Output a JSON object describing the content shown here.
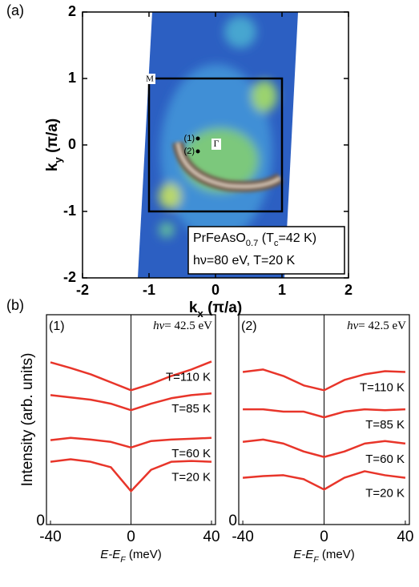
{
  "chart_data": [
    {
      "type": "image",
      "panel_label": "(a)",
      "x_label": [
        {
          "text": "k"
        },
        {
          "text": "x",
          "sub": true
        },
        {
          "text": " (π/a)"
        }
      ],
      "y_label": [
        {
          "text": "k"
        },
        {
          "text": "y",
          "sub": true
        },
        {
          "text": " (π/a)"
        }
      ],
      "xlim": [
        -2,
        2
      ],
      "ylim": [
        -2,
        2
      ],
      "xticks": [
        -2,
        -1,
        0,
        1,
        2
      ],
      "yticks": [
        -2,
        -1,
        0,
        1,
        2
      ],
      "bz_box": [
        -1,
        1
      ],
      "corner_label": "M",
      "center_label": "Γ",
      "points": [
        "(1)",
        "(2)"
      ],
      "annotation": [
        [
          {
            "text": "PrFeAsO"
          },
          {
            "text": "0.7",
            "sub": true
          },
          {
            "text": " (T"
          },
          {
            "text": "c",
            "sub": true
          },
          {
            "text": "=42 K)"
          }
        ],
        [
          {
            "text": "hν=80 eV, T=20 K"
          }
        ]
      ]
    },
    {
      "type": "line",
      "panel_label": "(b)",
      "tag": "(1)",
      "photon": [
        {
          "text": "hν",
          "italic": true
        },
        {
          "text": "= 42.5 eV"
        }
      ],
      "x_label": [
        {
          "text": "E-E",
          "italic": true
        },
        {
          "text": "F",
          "sub": true,
          "italic": true
        },
        {
          "text": " (meV)"
        }
      ],
      "y_label": "Intensity (arb. units)",
      "xlim": [
        -42,
        42
      ],
      "ylim": [
        0,
        10
      ],
      "xticks": [
        -40,
        0,
        40
      ],
      "yticks": [
        0
      ],
      "vline": 0,
      "x": [
        -40,
        -30,
        -20,
        -10,
        0,
        10,
        20,
        30,
        40
      ],
      "series": [
        {
          "name": "T=110 K",
          "color": "#e8352a",
          "values": [
            7.73,
            7.46,
            7.16,
            6.78,
            6.4,
            6.7,
            7.08,
            7.39,
            7.77
          ]
        },
        {
          "name": "T=85 K",
          "color": "#e8352a",
          "values": [
            6.17,
            6.06,
            5.95,
            5.76,
            5.45,
            5.76,
            6.02,
            6.17,
            6.25
          ]
        },
        {
          "name": "T=60 K",
          "color": "#e8352a",
          "values": [
            4.02,
            4.13,
            4.05,
            3.94,
            3.67,
            3.98,
            4.05,
            4.09,
            4.13
          ]
        },
        {
          "name": "T=20 K",
          "color": "#e8352a",
          "values": [
            2.99,
            3.11,
            2.99,
            2.73,
            1.59,
            2.61,
            2.99,
            3.03,
            2.99
          ]
        }
      ]
    },
    {
      "type": "line",
      "tag": "(2)",
      "photon": [
        {
          "text": "hν",
          "italic": true
        },
        {
          "text": "= 42.5 eV"
        }
      ],
      "x_label": [
        {
          "text": "E-E",
          "italic": true
        },
        {
          "text": "F",
          "sub": true,
          "italic": true
        },
        {
          "text": " (meV)"
        }
      ],
      "xlim": [
        -42,
        42
      ],
      "ylim": [
        0,
        10
      ],
      "xticks": [
        -40,
        0,
        40
      ],
      "yticks": [
        0
      ],
      "vline": 0,
      "x": [
        -40,
        -30,
        -20,
        -10,
        0,
        10,
        20,
        30,
        40
      ],
      "series": [
        {
          "name": "T=110 K",
          "color": "#e8352a",
          "values": [
            7.27,
            7.39,
            7.08,
            6.63,
            6.4,
            6.89,
            7.16,
            7.31,
            7.27
          ]
        },
        {
          "name": "T=85 K",
          "color": "#e8352a",
          "values": [
            5.49,
            5.49,
            5.38,
            5.38,
            5.11,
            5.38,
            5.49,
            5.45,
            5.49
          ]
        },
        {
          "name": "T=60 K",
          "color": "#e8352a",
          "values": [
            3.94,
            4.05,
            3.86,
            3.48,
            3.22,
            3.48,
            3.86,
            3.98,
            3.86
          ]
        },
        {
          "name": "T=20 K",
          "color": "#e8352a",
          "values": [
            2.23,
            2.31,
            2.35,
            2.16,
            1.67,
            2.23,
            2.54,
            2.35,
            2.23
          ]
        }
      ]
    }
  ]
}
